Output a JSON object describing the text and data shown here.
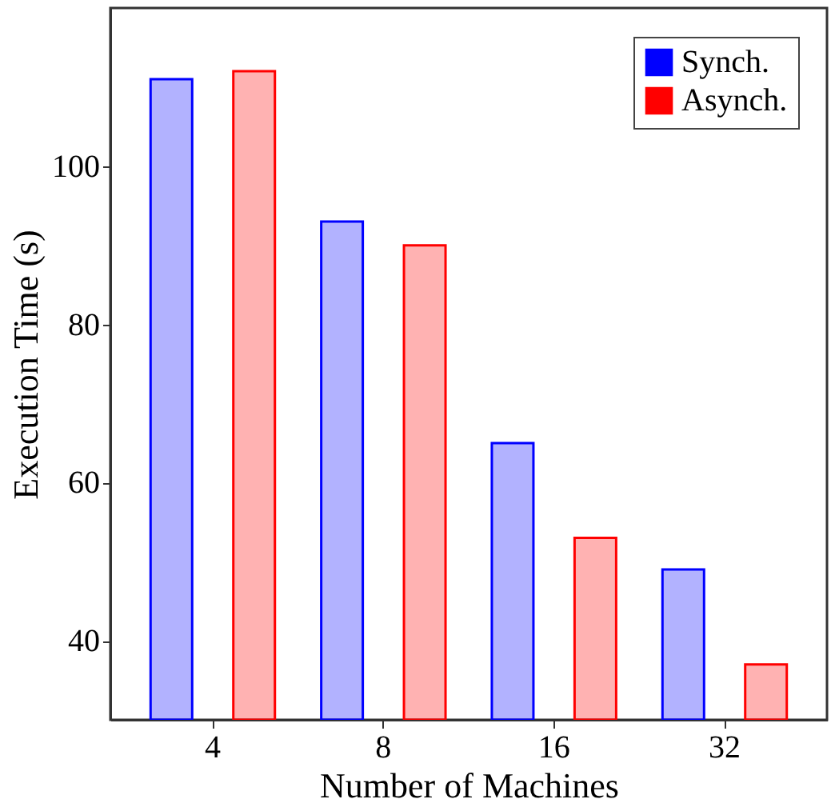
{
  "chart_data": {
    "type": "bar",
    "xlabel": "Number of Machines",
    "ylabel": "Execution Time (s)",
    "categories": [
      "4",
      "8",
      "16",
      "32"
    ],
    "series": [
      {
        "name": "Synch.",
        "color": "#0000ff",
        "values": [
          111,
          93,
          65,
          49
        ]
      },
      {
        "name": "Asynch.",
        "color": "#ff0000",
        "values": [
          112,
          90,
          53,
          37
        ]
      }
    ],
    "ylim": [
      30,
      120
    ],
    "yticks": [
      40,
      60,
      80,
      100
    ],
    "grid": false,
    "legend": "top right"
  }
}
